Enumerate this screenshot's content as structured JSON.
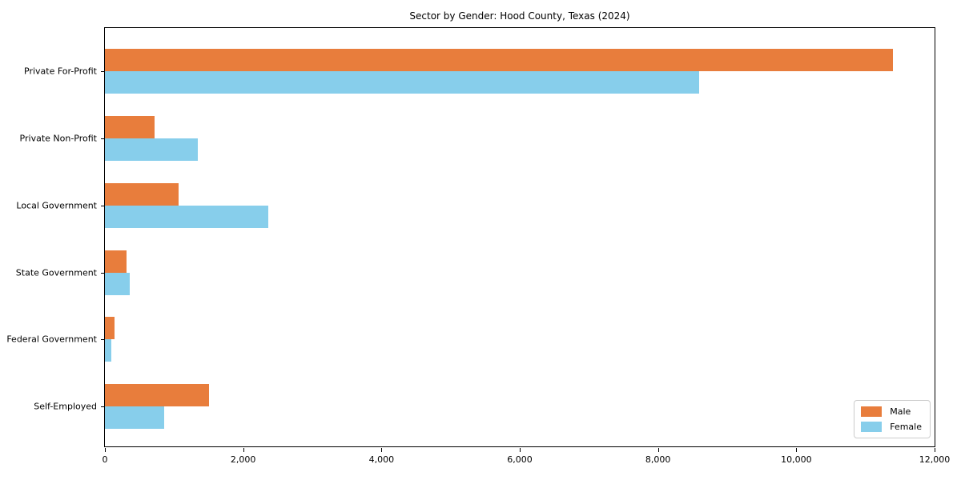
{
  "title": "Sector by Gender: Hood County, Texas (2024)",
  "colors": {
    "male": "#e87d3c",
    "female": "#87ceeb",
    "axis": "#000000",
    "legend_border": "#cccccc",
    "background": "#ffffff"
  },
  "chart_data": {
    "type": "bar",
    "orientation": "horizontal",
    "title": "Sector by Gender: Hood County, Texas (2024)",
    "categories": [
      "Private For-Profit",
      "Private Non-Profit",
      "Local Government",
      "State Government",
      "Federal Government",
      "Self-Employed"
    ],
    "series": [
      {
        "name": "Male",
        "color": "#e87d3c",
        "values": [
          11400,
          720,
          1070,
          310,
          140,
          1510
        ]
      },
      {
        "name": "Female",
        "color": "#87ceeb",
        "values": [
          8600,
          1340,
          2360,
          360,
          90,
          855
        ]
      }
    ],
    "xlabel": "",
    "ylabel": "",
    "xlim": [
      0,
      12000
    ],
    "x_tick_values": [
      0,
      2000,
      4000,
      6000,
      8000,
      10000,
      12000
    ],
    "x_tick_labels": [
      "0",
      "2,000",
      "4,000",
      "6,000",
      "8,000",
      "10,000",
      "12,000"
    ],
    "grid": false,
    "legend": {
      "position": "lower right",
      "entries": [
        "Male",
        "Female"
      ]
    }
  }
}
